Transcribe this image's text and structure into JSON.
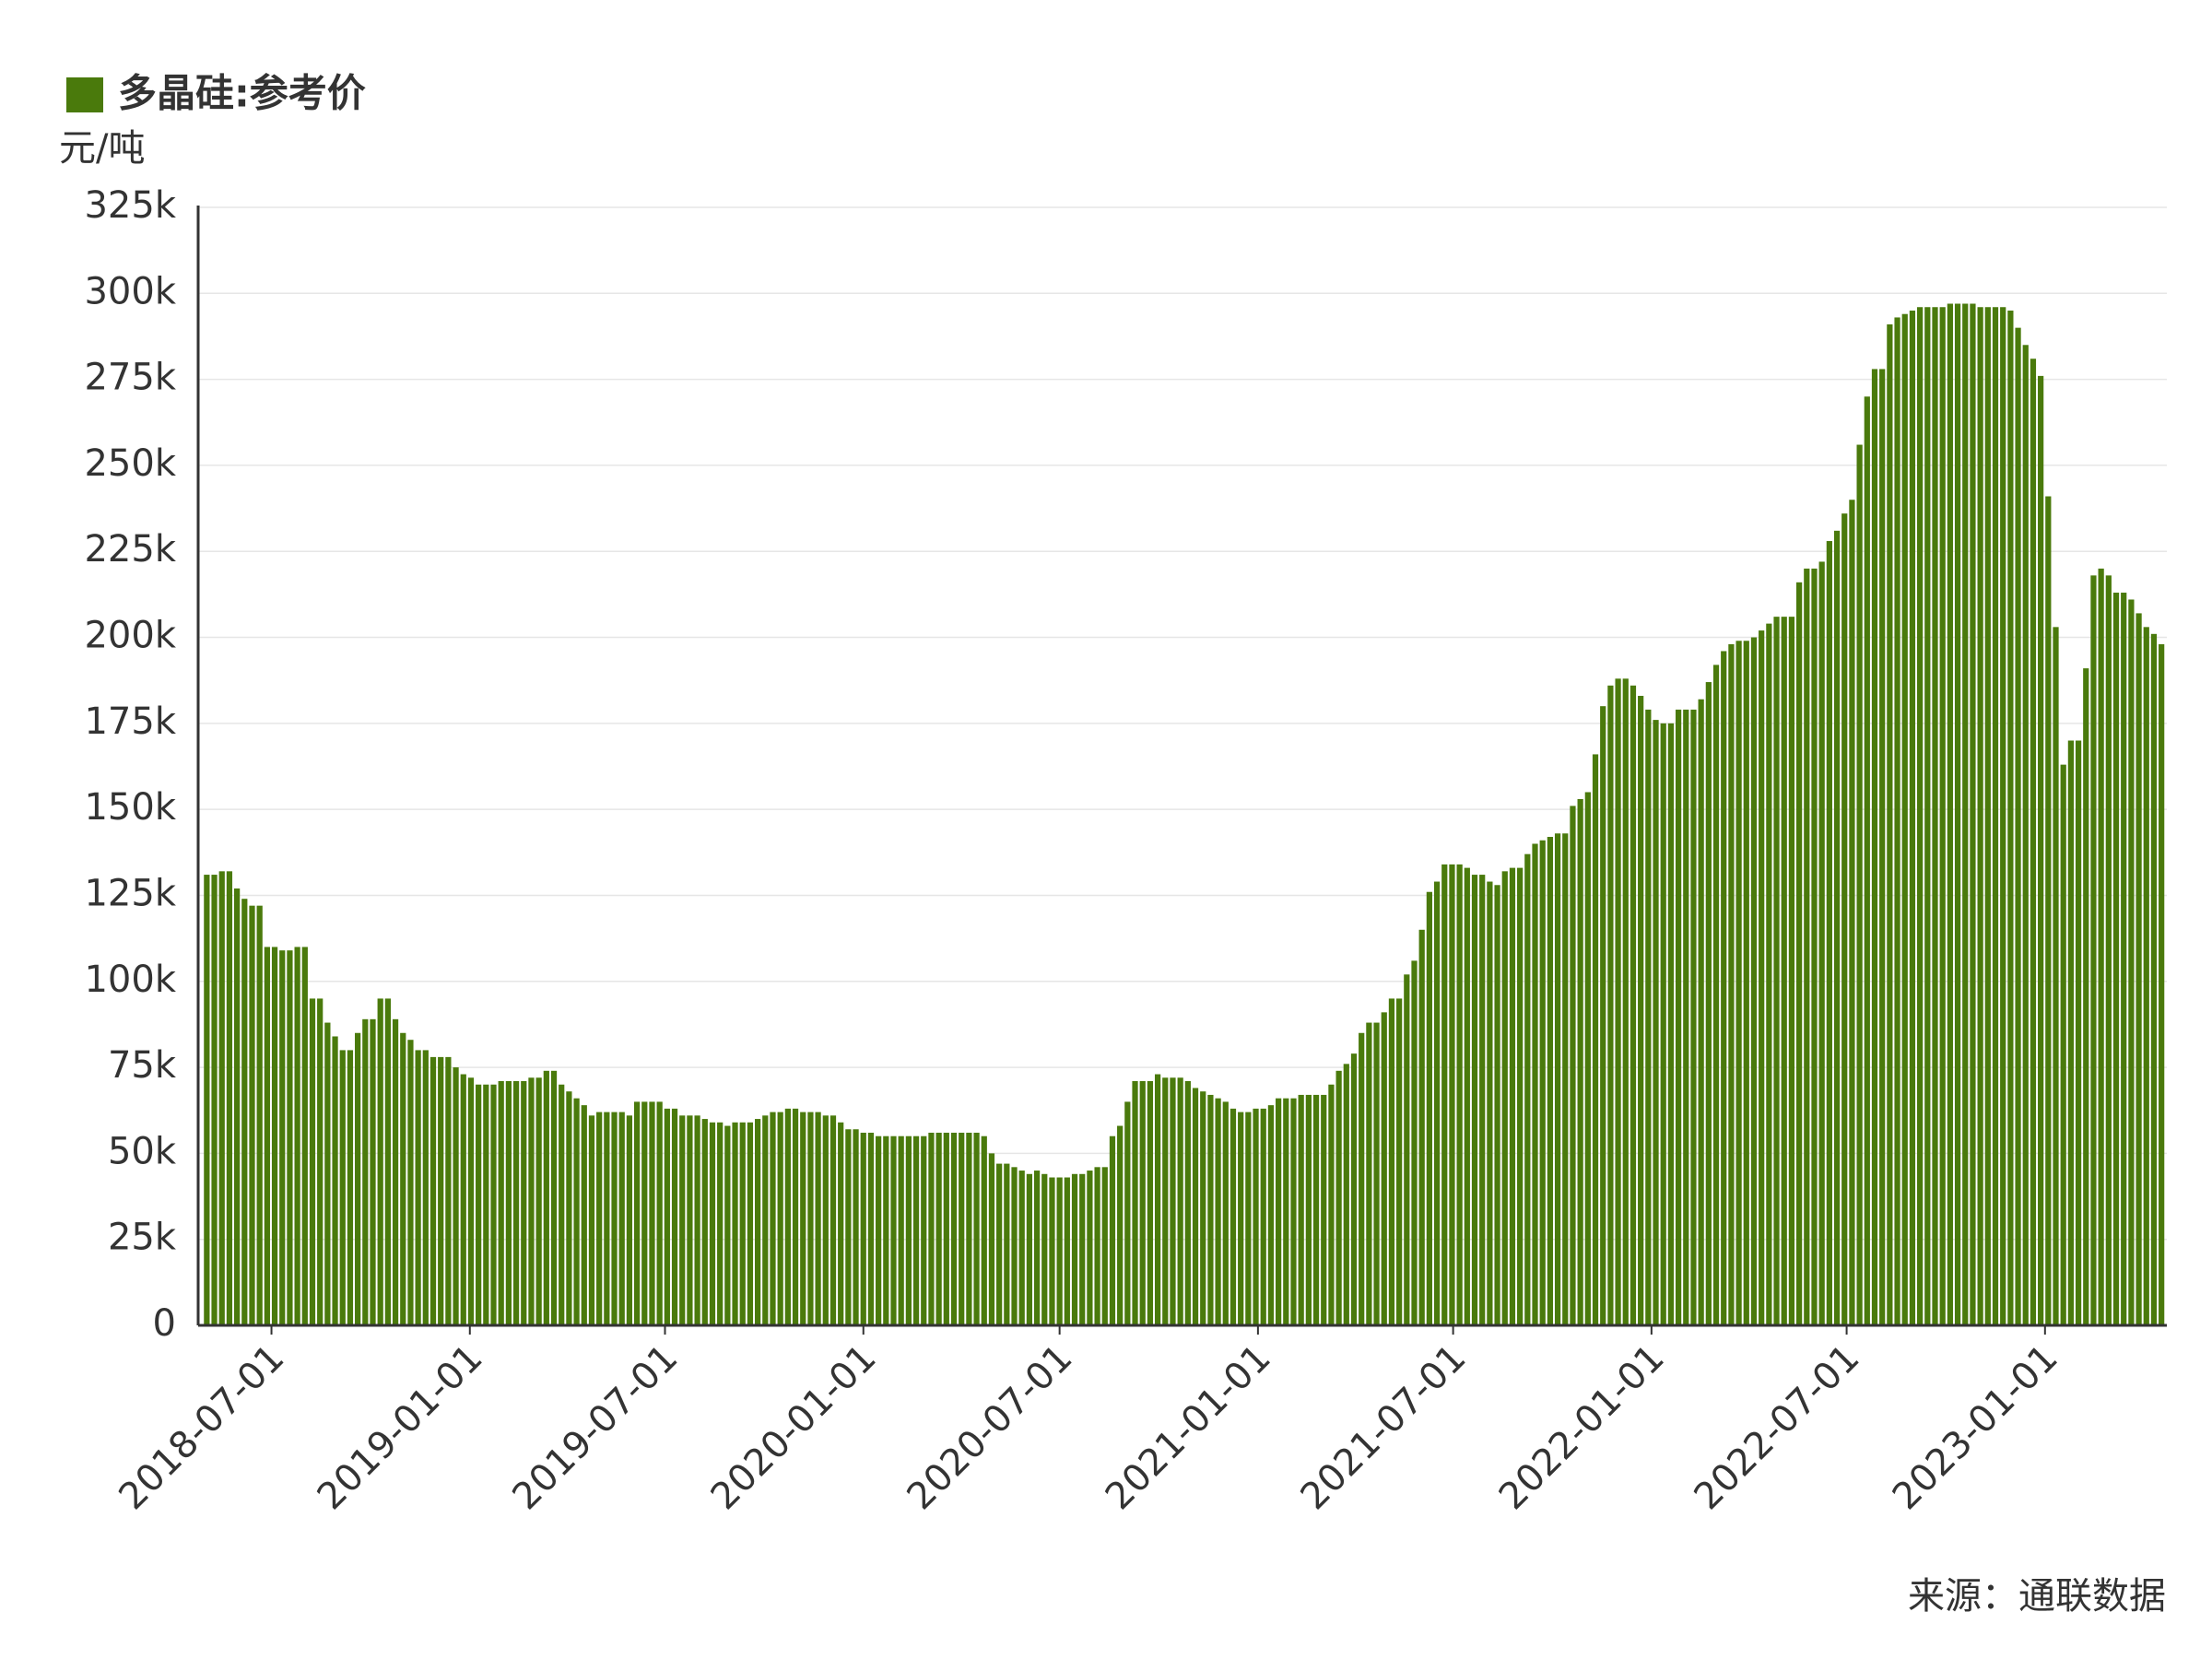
{
  "chart_data": {
    "type": "bar",
    "y_label": "元/吨",
    "source": "来源：通联数据",
    "x": [
      "2018-05-02",
      "2018-05-09",
      "2018-05-16",
      "2018-05-23",
      "2018-05-30",
      "2018-06-06",
      "2018-06-13",
      "2018-06-20",
      "2018-06-27",
      "2018-07-04",
      "2018-07-11",
      "2018-07-18",
      "2018-07-25",
      "2018-08-01",
      "2018-08-08",
      "2018-08-15",
      "2018-08-22",
      "2018-08-29",
      "2018-09-05",
      "2018-09-12",
      "2018-09-19",
      "2018-09-26",
      "2018-10-03",
      "2018-10-10",
      "2018-10-17",
      "2018-10-24",
      "2018-10-31",
      "2018-11-07",
      "2018-11-14",
      "2018-11-21",
      "2018-11-28",
      "2018-12-05",
      "2018-12-12",
      "2018-12-19",
      "2018-12-26",
      "2019-01-02",
      "2019-01-09",
      "2019-01-16",
      "2019-01-23",
      "2019-01-30",
      "2019-02-06",
      "2019-02-13",
      "2019-02-20",
      "2019-02-27",
      "2019-03-06",
      "2019-03-13",
      "2019-03-20",
      "2019-03-27",
      "2019-04-03",
      "2019-04-10",
      "2019-04-17",
      "2019-04-24",
      "2019-05-01",
      "2019-05-08",
      "2019-05-15",
      "2019-05-22",
      "2019-05-29",
      "2019-06-05",
      "2019-06-12",
      "2019-06-19",
      "2019-06-26",
      "2019-07-03",
      "2019-07-10",
      "2019-07-17",
      "2019-07-24",
      "2019-07-31",
      "2019-08-07",
      "2019-08-14",
      "2019-08-21",
      "2019-08-28",
      "2019-09-04",
      "2019-09-11",
      "2019-09-18",
      "2019-09-25",
      "2019-10-02",
      "2019-10-09",
      "2019-10-16",
      "2019-10-23",
      "2019-10-30",
      "2019-11-06",
      "2019-11-13",
      "2019-11-20",
      "2019-11-27",
      "2019-12-04",
      "2019-12-11",
      "2019-12-18",
      "2019-12-25",
      "2020-01-01",
      "2020-01-08",
      "2020-01-15",
      "2020-01-22",
      "2020-01-29",
      "2020-02-05",
      "2020-02-12",
      "2020-02-19",
      "2020-02-26",
      "2020-03-04",
      "2020-03-11",
      "2020-03-18",
      "2020-03-25",
      "2020-04-01",
      "2020-04-08",
      "2020-04-15",
      "2020-04-22",
      "2020-04-29",
      "2020-05-06",
      "2020-05-13",
      "2020-05-20",
      "2020-05-27",
      "2020-06-03",
      "2020-06-10",
      "2020-06-17",
      "2020-06-24",
      "2020-07-01",
      "2020-07-08",
      "2020-07-15",
      "2020-07-22",
      "2020-07-29",
      "2020-08-05",
      "2020-08-12",
      "2020-08-19",
      "2020-08-26",
      "2020-09-02",
      "2020-09-09",
      "2020-09-16",
      "2020-09-23",
      "2020-09-30",
      "2020-10-07",
      "2020-10-14",
      "2020-10-21",
      "2020-10-28",
      "2020-11-04",
      "2020-11-11",
      "2020-11-18",
      "2020-11-25",
      "2020-12-02",
      "2020-12-09",
      "2020-12-16",
      "2020-12-23",
      "2020-12-30",
      "2021-01-06",
      "2021-01-13",
      "2021-01-20",
      "2021-01-27",
      "2021-02-03",
      "2021-02-10",
      "2021-02-17",
      "2021-02-24",
      "2021-03-03",
      "2021-03-10",
      "2021-03-17",
      "2021-03-24",
      "2021-03-31",
      "2021-04-07",
      "2021-04-14",
      "2021-04-21",
      "2021-04-28",
      "2021-05-05",
      "2021-05-12",
      "2021-05-19",
      "2021-05-26",
      "2021-06-02",
      "2021-06-09",
      "2021-06-16",
      "2021-06-23",
      "2021-06-30",
      "2021-07-07",
      "2021-07-14",
      "2021-07-21",
      "2021-07-28",
      "2021-08-04",
      "2021-08-11",
      "2021-08-18",
      "2021-08-25",
      "2021-09-01",
      "2021-09-08",
      "2021-09-15",
      "2021-09-22",
      "2021-09-29",
      "2021-10-06",
      "2021-10-13",
      "2021-10-20",
      "2021-10-27",
      "2021-11-03",
      "2021-11-10",
      "2021-11-17",
      "2021-11-24",
      "2021-12-01",
      "2021-12-08",
      "2021-12-15",
      "2021-12-22",
      "2021-12-29",
      "2022-01-05",
      "2022-01-12",
      "2022-01-19",
      "2022-01-26",
      "2022-02-02",
      "2022-02-09",
      "2022-02-16",
      "2022-02-23",
      "2022-03-02",
      "2022-03-09",
      "2022-03-16",
      "2022-03-23",
      "2022-03-30",
      "2022-04-06",
      "2022-04-13",
      "2022-04-20",
      "2022-04-27",
      "2022-05-04",
      "2022-05-11",
      "2022-05-18",
      "2022-05-25",
      "2022-06-01",
      "2022-06-08",
      "2022-06-15",
      "2022-06-22",
      "2022-06-29",
      "2022-07-06",
      "2022-07-13",
      "2022-07-20",
      "2022-07-27",
      "2022-08-03",
      "2022-08-10",
      "2022-08-17",
      "2022-08-24",
      "2022-08-31",
      "2022-09-07",
      "2022-09-14",
      "2022-09-21",
      "2022-09-28",
      "2022-10-05",
      "2022-10-12",
      "2022-10-19",
      "2022-10-26",
      "2022-11-02",
      "2022-11-09",
      "2022-11-16",
      "2022-11-23",
      "2022-11-30",
      "2022-12-07",
      "2022-12-14",
      "2022-12-21",
      "2022-12-28",
      "2023-01-04",
      "2023-01-11",
      "2023-01-18",
      "2023-01-25",
      "2023-02-01",
      "2023-02-08",
      "2023-02-15",
      "2023-02-22",
      "2023-03-01",
      "2023-03-08",
      "2023-03-15",
      "2023-03-22",
      "2023-03-29",
      "2023-04-05",
      "2023-04-12",
      "2023-04-19"
    ],
    "series": [
      {
        "name": "多晶硅:参考价",
        "color": "#4a7a0c",
        "values": [
          131000,
          131000,
          132000,
          132000,
          127000,
          124000,
          122000,
          122000,
          110000,
          110000,
          109000,
          109000,
          110000,
          110000,
          95000,
          95000,
          88000,
          84000,
          80000,
          80000,
          85000,
          89000,
          89000,
          95000,
          95000,
          89000,
          85000,
          83000,
          80000,
          80000,
          78000,
          78000,
          78000,
          75000,
          73000,
          72000,
          70000,
          70000,
          70000,
          71000,
          71000,
          71000,
          71000,
          72000,
          72000,
          74000,
          74000,
          70000,
          68000,
          66000,
          64000,
          61000,
          62000,
          62000,
          62000,
          62000,
          61000,
          65000,
          65000,
          65000,
          65000,
          63000,
          63000,
          61000,
          61000,
          61000,
          60000,
          59000,
          59000,
          58000,
          59000,
          59000,
          59000,
          60000,
          61000,
          62000,
          62000,
          63000,
          63000,
          62000,
          62000,
          62000,
          61000,
          61000,
          59000,
          57000,
          57000,
          56000,
          56000,
          55000,
          55000,
          55000,
          55000,
          55000,
          55000,
          55000,
          56000,
          56000,
          56000,
          56000,
          56000,
          56000,
          56000,
          55000,
          50000,
          47000,
          47000,
          46000,
          45000,
          44000,
          45000,
          44000,
          43000,
          43000,
          43000,
          44000,
          44000,
          45000,
          46000,
          46000,
          55000,
          58000,
          65000,
          71000,
          71000,
          71000,
          73000,
          72000,
          72000,
          72000,
          71000,
          69000,
          68000,
          67000,
          66000,
          65000,
          63000,
          62000,
          62000,
          63000,
          63000,
          64000,
          66000,
          66000,
          66000,
          67000,
          67000,
          67000,
          67000,
          70000,
          74000,
          76000,
          79000,
          85000,
          88000,
          88000,
          91000,
          95000,
          95000,
          102000,
          106000,
          115000,
          126000,
          129000,
          134000,
          134000,
          134000,
          133000,
          131000,
          131000,
          129000,
          128000,
          132000,
          133000,
          133000,
          137000,
          140000,
          141000,
          142000,
          143000,
          143000,
          151000,
          153000,
          155000,
          166000,
          180000,
          186000,
          188000,
          188000,
          186000,
          183000,
          179000,
          176000,
          175000,
          175000,
          179000,
          179000,
          179000,
          182000,
          187000,
          192000,
          196000,
          198000,
          199000,
          199000,
          200000,
          202000,
          204000,
          206000,
          206000,
          206000,
          216000,
          220000,
          220000,
          222000,
          228000,
          231000,
          236000,
          240000,
          256000,
          270000,
          278000,
          278000,
          291000,
          293000,
          294000,
          295000,
          296000,
          296000,
          296000,
          296000,
          297000,
          297000,
          297000,
          297000,
          296000,
          296000,
          296000,
          296000,
          295000,
          290000,
          285000,
          281000,
          276000,
          241000,
          203000,
          163000,
          170000,
          170000,
          191000,
          218000,
          220000,
          218000,
          213000,
          213000,
          211000,
          207000,
          203000,
          201000,
          198000
        ]
      }
    ],
    "xlim": [
      "2018-04-24",
      "2023-04-24"
    ],
    "xticks": [
      "2018-07-01",
      "2019-01-01",
      "2019-07-01",
      "2020-01-01",
      "2020-07-01",
      "2021-01-01",
      "2021-07-01",
      "2022-01-01",
      "2022-07-01",
      "2023-01-01"
    ],
    "ylim": [
      0,
      325000
    ],
    "yticks": [
      0,
      {
        "value": 25000,
        "label": "25k"
      },
      {
        "value": 50000,
        "label": "50k"
      },
      {
        "value": 75000,
        "label": "75k"
      },
      {
        "value": 100000,
        "label": "100k"
      },
      {
        "value": 125000,
        "label": "125k"
      },
      {
        "value": 150000,
        "label": "150k"
      },
      {
        "value": 175000,
        "label": "175k"
      },
      {
        "value": 200000,
        "label": "200k"
      },
      {
        "value": 225000,
        "label": "225k"
      },
      {
        "value": 250000,
        "label": "250k"
      },
      {
        "value": 275000,
        "label": "275k"
      },
      {
        "value": 300000,
        "label": "300k"
      },
      {
        "value": 325000,
        "label": "325k"
      }
    ],
    "grid": true
  }
}
